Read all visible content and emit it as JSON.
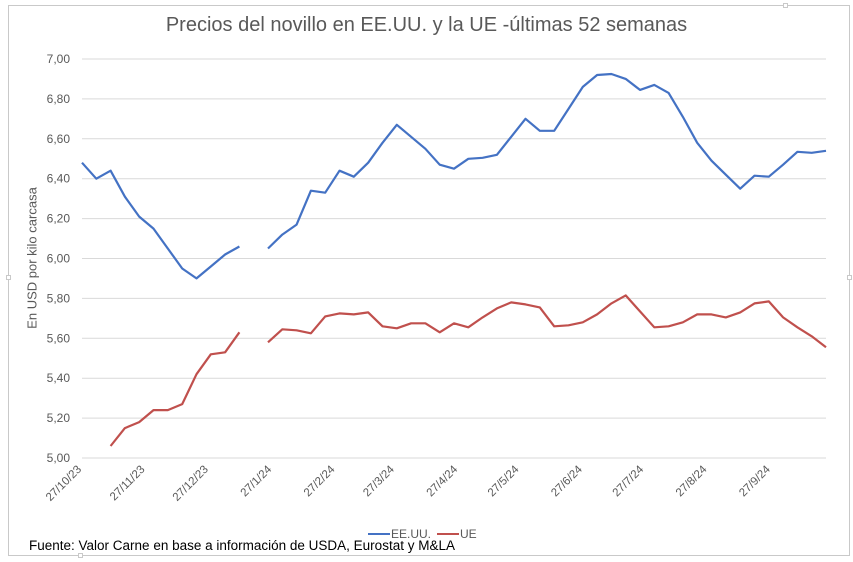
{
  "chart_data": {
    "type": "line",
    "title": "Precios del novillo en EE.UU. y la UE -últimas 52 semanas",
    "xlabel": "",
    "ylabel": "En USD por kilo carcasa",
    "ylim": [
      5.0,
      7.0
    ],
    "yticks": [
      "7,00",
      "6,80",
      "6,60",
      "6,40",
      "6,20",
      "6,00",
      "5,80",
      "5,60",
      "5,40",
      "5,20",
      "5,00"
    ],
    "ytick_values": [
      7.0,
      6.8,
      6.6,
      6.4,
      6.2,
      6.0,
      5.8,
      5.6,
      5.4,
      5.2,
      5.0
    ],
    "xtick_labels": [
      "27/10/23",
      "27/11/23",
      "27/12/23",
      "27/1/24",
      "27/2/24",
      "27/3/24",
      "27/4/24",
      "27/5/24",
      "27/6/24",
      "27/7/24",
      "27/8/24",
      "27/9/24"
    ],
    "xtick_week_positions": [
      0,
      4.43,
      8.86,
      13.29,
      17.71,
      21.86,
      26.29,
      30.57,
      35.0,
      39.29,
      43.71,
      48.14
    ],
    "grid": true,
    "legend_position": "bottom",
    "x_weeks": [
      0,
      1,
      2,
      3,
      4,
      5,
      6,
      7,
      8,
      9,
      10,
      11,
      12,
      13,
      14,
      15,
      16,
      17,
      18,
      19,
      20,
      21,
      22,
      23,
      24,
      25,
      26,
      27,
      28,
      29,
      30,
      31,
      32,
      33,
      34,
      35,
      36,
      37,
      38,
      39,
      40,
      41,
      42,
      43,
      44,
      45,
      46,
      47,
      48,
      49,
      50,
      51,
      52
    ],
    "series": [
      {
        "name": "EE.UU.",
        "color": "#4472c4",
        "values": [
          6.48,
          6.4,
          6.44,
          6.31,
          6.21,
          6.15,
          6.05,
          5.95,
          5.9,
          5.96,
          6.02,
          6.06,
          null,
          6.05,
          6.12,
          6.17,
          6.34,
          6.33,
          6.44,
          6.41,
          6.48,
          6.58,
          6.67,
          6.61,
          6.55,
          6.47,
          6.45,
          6.5,
          6.505,
          6.52,
          6.61,
          6.7,
          6.64,
          6.64,
          6.75,
          6.86,
          6.92,
          6.925,
          6.9,
          6.845,
          6.87,
          6.83,
          6.71,
          6.58,
          6.49,
          6.42,
          6.35,
          6.415,
          6.41,
          6.47,
          6.535,
          6.53,
          6.54
        ]
      },
      {
        "name": "UE",
        "color": "#c0504d",
        "values": [
          null,
          null,
          5.06,
          5.15,
          5.18,
          5.24,
          5.24,
          5.27,
          5.42,
          5.52,
          5.53,
          5.63,
          null,
          5.58,
          5.645,
          5.64,
          5.625,
          5.71,
          5.725,
          5.72,
          5.73,
          5.66,
          5.65,
          5.675,
          5.675,
          5.63,
          5.675,
          5.655,
          5.705,
          5.75,
          5.78,
          5.77,
          5.755,
          5.66,
          5.665,
          5.68,
          5.72,
          5.775,
          5.815,
          5.735,
          5.655,
          5.66,
          5.68,
          5.72,
          5.72,
          5.705,
          5.73,
          5.775,
          5.785,
          5.705,
          5.655,
          5.61,
          5.555
        ]
      }
    ]
  },
  "source_note": "Fuente: Valor Carne en base a información de USDA, Eurostat y M&LA"
}
